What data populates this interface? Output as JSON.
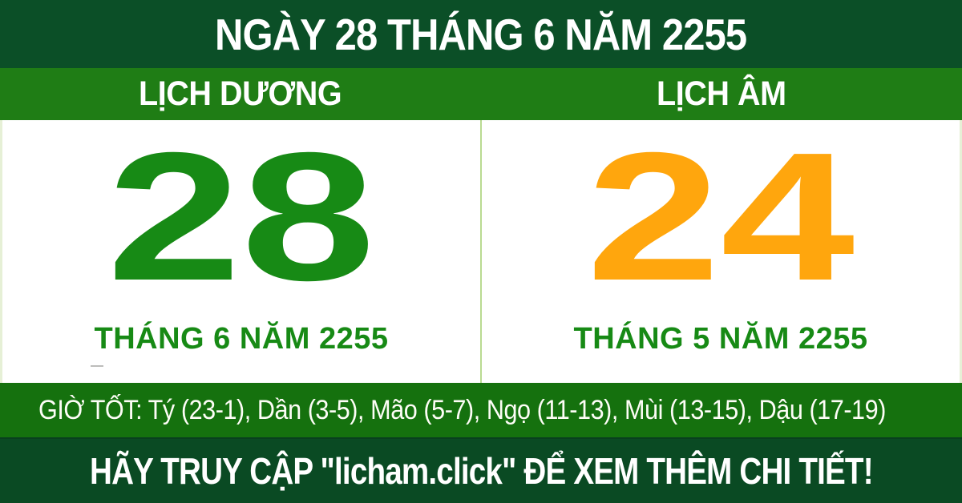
{
  "header": {
    "title": "NGÀY 28 THÁNG 6 NĂM 2255"
  },
  "calendar": {
    "solar": {
      "label": "LỊCH DƯƠNG",
      "day": "28",
      "month_year": "THÁNG 6 NĂM 2255"
    },
    "lunar": {
      "label": "LỊCH ÂM",
      "day": "24",
      "month_year": "THÁNG 5 NĂM 2255"
    }
  },
  "good_hours": {
    "text": "GIỜ TỐT: Tý (23-1), Dần (3-5), Mão (5-7), Ngọ (11-13), Mùi (13-15), Dậu (17-19)"
  },
  "footer": {
    "message": "HÃY TRUY CẬP \"licham.click\" ĐỂ XEM THÊM CHI TIẾT!"
  },
  "colors": {
    "header_bg": "#0b4f27",
    "label_band_bg": "#1f7d15",
    "body_bg": "#ffffff",
    "solar_day_color": "#178a15",
    "lunar_day_color": "#ffa60d",
    "month_text_color": "#178a15",
    "hours_band_bg": "#15710e",
    "footer_bg": "#0a4a23",
    "divider_color": "#b9da92",
    "text_color": "#ffffff"
  }
}
